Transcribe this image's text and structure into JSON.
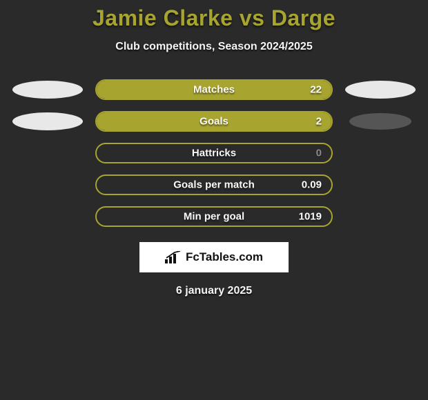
{
  "title": "Jamie Clarke vs Darge",
  "subtitle": "Club competitions, Season 2024/2025",
  "date": "6 january 2025",
  "badge_text": "FcTables.com",
  "colors": {
    "background": "#2a2a2a",
    "accent": "#a8a430",
    "ellipse_light": "#e8e8e8",
    "ellipse_dark": "#555555",
    "text_light": "#f5f5f5",
    "text_dim": "#8a8a8a",
    "badge_bg": "#ffffff"
  },
  "rows": [
    {
      "label": "Matches",
      "value": "22",
      "fill_pct": 100,
      "left_ellipse": "light",
      "right_ellipse": "light",
      "value_dim": false
    },
    {
      "label": "Goals",
      "value": "2",
      "fill_pct": 100,
      "left_ellipse": "light",
      "right_ellipse": "dark",
      "value_dim": false
    },
    {
      "label": "Hattricks",
      "value": "0",
      "fill_pct": 0,
      "left_ellipse": "none",
      "right_ellipse": "none",
      "value_dim": true
    },
    {
      "label": "Goals per match",
      "value": "0.09",
      "fill_pct": 0,
      "left_ellipse": "none",
      "right_ellipse": "none",
      "value_dim": false
    },
    {
      "label": "Min per goal",
      "value": "1019",
      "fill_pct": 0,
      "left_ellipse": "none",
      "right_ellipse": "none",
      "value_dim": false
    }
  ]
}
